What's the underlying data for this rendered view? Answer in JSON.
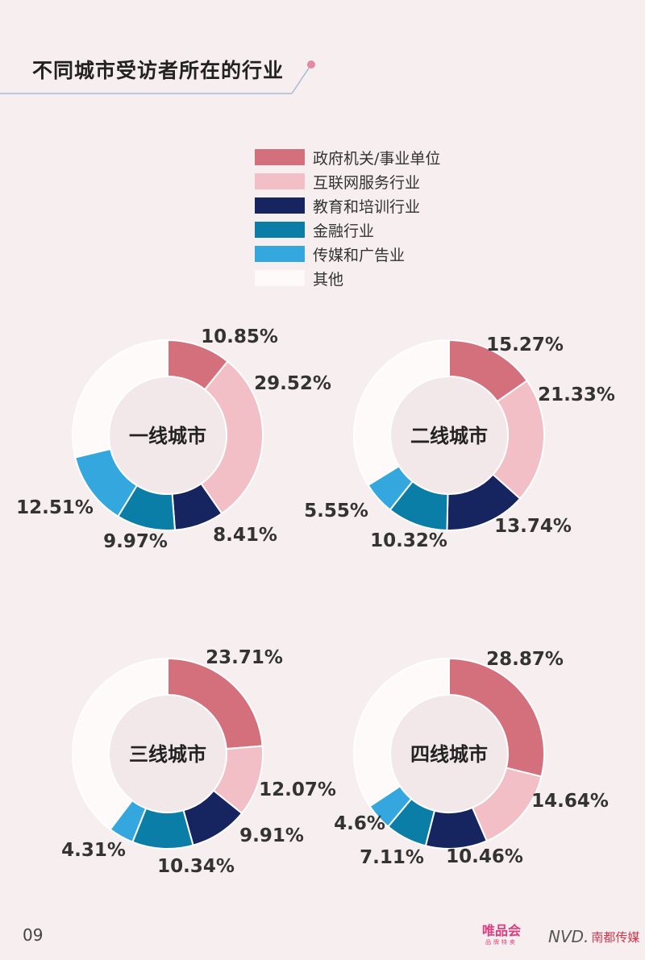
{
  "page": {
    "title": "不同城市受访者所在的行业",
    "page_number": "09",
    "brand_vip": "唯品会",
    "brand_vip_tag": "品牌特卖",
    "brand_nd_logo": "NVD.",
    "brand_nd": "南都传媒"
  },
  "colors": {
    "gov": "#d46f7c",
    "internet": "#f1bfc5",
    "education": "#162460",
    "finance": "#0b7ea8",
    "media": "#35a7df",
    "other": "#fffafa",
    "accent_dot": "#e58aa3",
    "rule": "#a7bcd6"
  },
  "chart_data": [
    {
      "type": "pie",
      "title": "一线城市",
      "categories": [
        "政府机关/事业单位",
        "互联网服务行业",
        "教育和培训行业",
        "金融行业",
        "传媒和广告业",
        "其他"
      ],
      "values": [
        10.85,
        29.52,
        8.41,
        9.97,
        12.51,
        28.74
      ],
      "data_labels": [
        "10.85%",
        "29.52%",
        "8.41%",
        "9.97%",
        "12.51%",
        ""
      ],
      "legend": "top"
    },
    {
      "type": "pie",
      "title": "二线城市",
      "categories": [
        "政府机关/事业单位",
        "互联网服务行业",
        "教育和培训行业",
        "金融行业",
        "传媒和广告业",
        "其他"
      ],
      "values": [
        15.27,
        21.33,
        13.74,
        10.32,
        5.55,
        33.79
      ],
      "data_labels": [
        "15.27%",
        "21.33%",
        "13.74%",
        "10.32%",
        "5.55%",
        ""
      ],
      "legend": "top"
    },
    {
      "type": "pie",
      "title": "三线城市",
      "categories": [
        "政府机关/事业单位",
        "互联网服务行业",
        "教育和培训行业",
        "金融行业",
        "传媒和广告业",
        "其他"
      ],
      "values": [
        23.71,
        12.07,
        9.91,
        10.34,
        4.31,
        39.66
      ],
      "data_labels": [
        "23.71%",
        "12.07%",
        "9.91%",
        "10.34%",
        "4.31%",
        ""
      ],
      "legend": "top"
    },
    {
      "type": "pie",
      "title": "四线城市",
      "categories": [
        "政府机关/事业单位",
        "互联网服务行业",
        "教育和培训行业",
        "金融行业",
        "传媒和广告业",
        "其他"
      ],
      "values": [
        28.87,
        14.64,
        10.46,
        7.11,
        4.6,
        34.32
      ],
      "data_labels": [
        "28.87%",
        "14.64%",
        "10.46%",
        "7.11%",
        "4.6%",
        ""
      ],
      "legend": "top"
    }
  ]
}
